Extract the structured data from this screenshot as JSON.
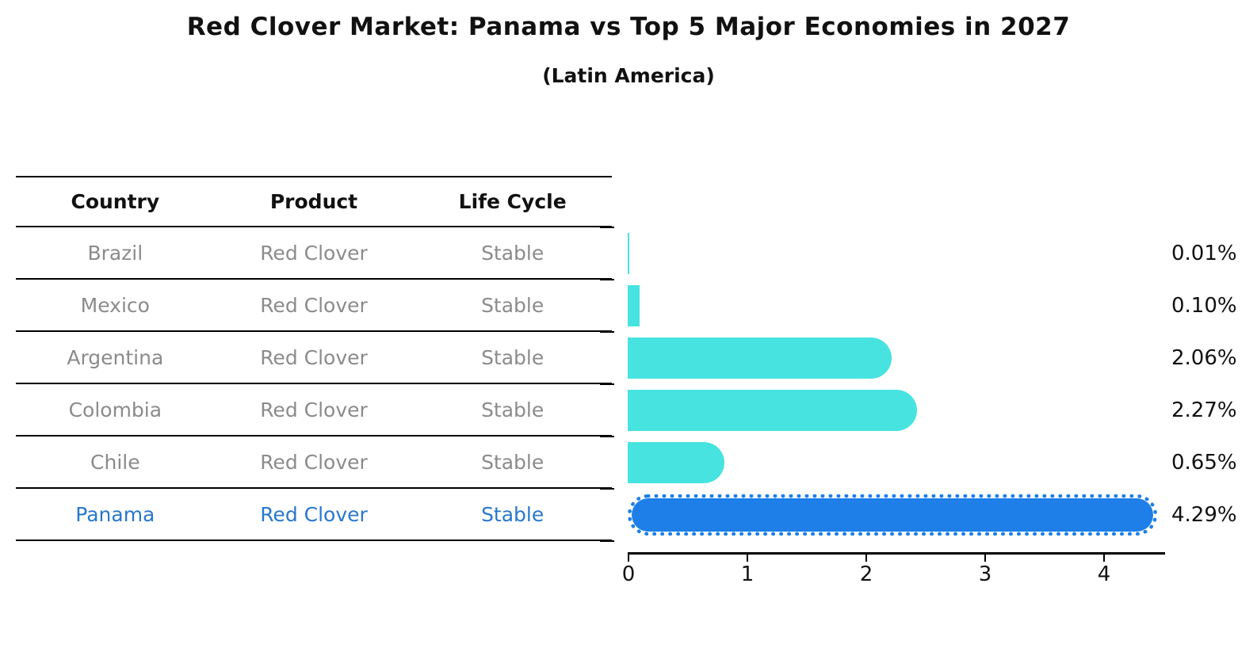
{
  "header": {
    "title": "Red Clover Market: Panama vs Top 5 Major Economies in 2027",
    "subtitle": "(Latin America)"
  },
  "table": {
    "columns": [
      "Country",
      "Product",
      "Life Cycle"
    ],
    "rows": [
      {
        "country": "Brazil",
        "product": "Red Clover",
        "life_cycle": "Stable",
        "highlight": false
      },
      {
        "country": "Mexico",
        "product": "Red Clover",
        "life_cycle": "Stable",
        "highlight": false
      },
      {
        "country": "Argentina",
        "product": "Red Clover",
        "life_cycle": "Stable",
        "highlight": false
      },
      {
        "country": "Colombia",
        "product": "Red Clover",
        "life_cycle": "Stable",
        "highlight": false
      },
      {
        "country": "Chile",
        "product": "Red Clover",
        "life_cycle": "Stable",
        "highlight": false
      },
      {
        "country": "Panama",
        "product": "Red Clover",
        "life_cycle": "Stable",
        "highlight": true
      }
    ]
  },
  "chart_data": {
    "type": "bar",
    "orientation": "horizontal",
    "title": "Red Clover Market: Panama vs Top 5 Major Economies in 2027",
    "subtitle": "(Latin America)",
    "categories": [
      "Brazil",
      "Mexico",
      "Argentina",
      "Colombia",
      "Chile",
      "Panama"
    ],
    "values": [
      0.01,
      0.1,
      2.06,
      2.27,
      0.65,
      4.29
    ],
    "value_labels": [
      "0.01%",
      "0.10%",
      "2.06%",
      "2.27%",
      "0.65%",
      "4.29%"
    ],
    "xticks": [
      0,
      1,
      2,
      3,
      4
    ],
    "xlim": [
      0,
      4.52
    ],
    "grid": false,
    "legend": "none",
    "bar_color": "#46e3e0",
    "highlight_color": "#1e7fe8",
    "highlight_index": 5,
    "highlight_text_color": "#2878cc",
    "label_color": "#111111",
    "table_text_color": "#8b8b8b"
  }
}
